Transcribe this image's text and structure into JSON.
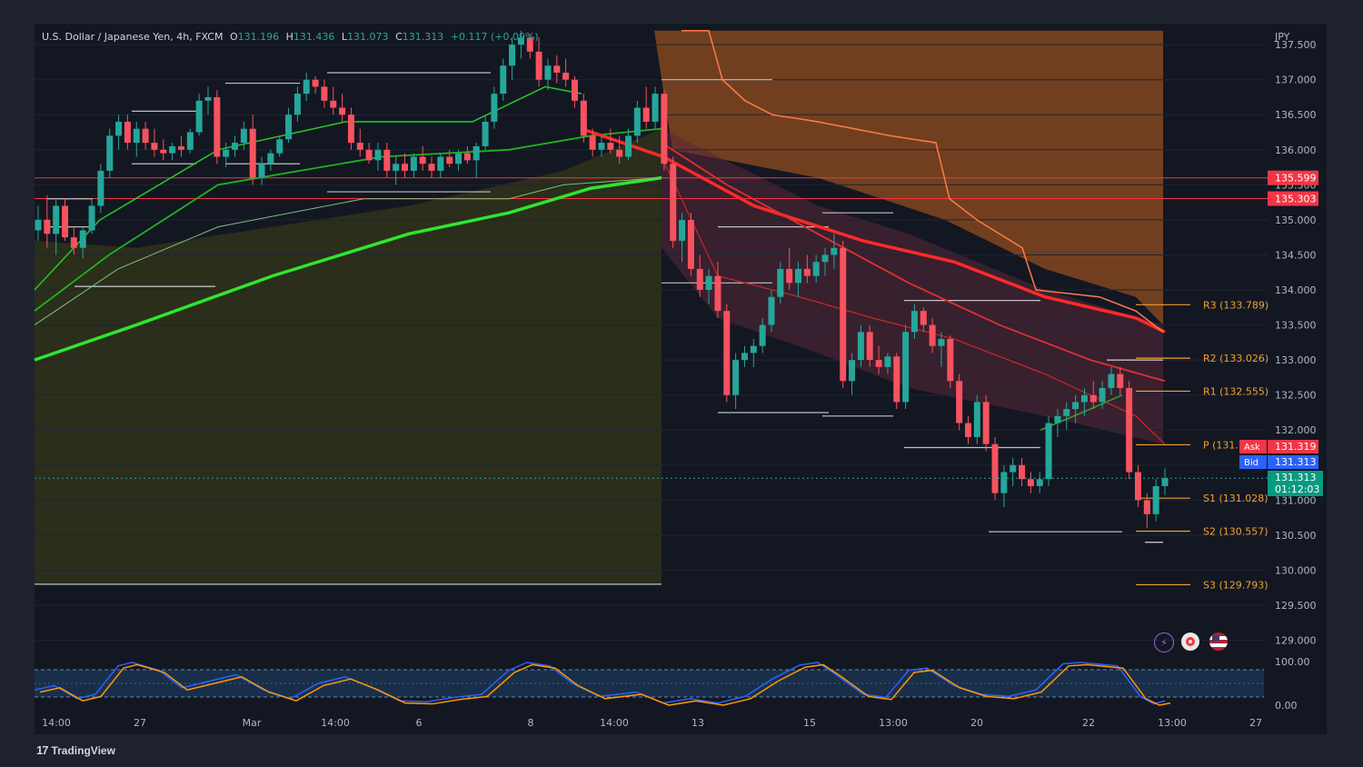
{
  "header": {
    "symbol": "U.S. Dollar / Japanese Yen",
    "interval": "4h",
    "source": "FXCM",
    "open_label": "O",
    "open": "131.196",
    "high_label": "H",
    "high": "131.436",
    "low_label": "L",
    "low": "131.073",
    "close_label": "C",
    "close": "131.313",
    "change": "+0.117 (+0.09%)"
  },
  "branding": {
    "logo_text": "TradingView",
    "logo_mark": "17"
  },
  "price_scale": {
    "currency": "JPY",
    "ticks": [
      "137.500",
      "137.000",
      "136.500",
      "136.000",
      "135.500",
      "135.000",
      "134.500",
      "134.000",
      "133.500",
      "133.000",
      "132.500",
      "132.000",
      "131.500",
      "131.000",
      "130.500",
      "130.000",
      "129.500",
      "129.000"
    ]
  },
  "price_labels": {
    "level_1": "135.599",
    "level_2": "135.303",
    "ask_label": "Ask",
    "ask": "131.319",
    "bid_label": "Bid",
    "bid": "131.313",
    "last": "131.313",
    "countdown": "01:12:03"
  },
  "pivots": [
    {
      "label": "R3 (133.789)",
      "value": 133.789
    },
    {
      "label": "R2 (133.026)",
      "value": 133.026
    },
    {
      "label": "R1 (132.555)",
      "value": 132.555
    },
    {
      "label": "P (131.",
      "value": 131.79
    },
    {
      "label": "S1 (131.028)",
      "value": 131.028
    },
    {
      "label": "S2 (130.557)",
      "value": 130.557
    },
    {
      "label": "S3 (129.793)",
      "value": 129.793
    }
  ],
  "oscillator": {
    "ticks": [
      "100.00",
      "0.00"
    ]
  },
  "time_axis": {
    "labels": [
      "14:00",
      "27",
      "Mar",
      "14:00",
      "6",
      "8",
      "14:00",
      "13",
      "15",
      "13:00",
      "20",
      "22",
      "13:00",
      "27"
    ]
  },
  "icons": [
    "lightning-icon",
    "record-icon",
    "us-flag-icon"
  ],
  "colors": {
    "up": "#26a69a",
    "down": "#f7525f",
    "ema_green": "#2ee62e",
    "ema_red": "#ff2a2a",
    "cloud_orange": "#8a4a1f",
    "cloud_olive": "#2f3219",
    "pivot": "#f0a030"
  },
  "chart_data": {
    "type": "candlestick",
    "symbol": "USDJPY",
    "interval": "4h",
    "y_range": [
      128.8,
      137.8
    ],
    "candles": [
      [
        134.85,
        135.2,
        134.7,
        135.0
      ],
      [
        135.0,
        135.35,
        134.6,
        134.8
      ],
      [
        134.8,
        135.3,
        134.5,
        135.2
      ],
      [
        135.2,
        135.3,
        134.7,
        134.75
      ],
      [
        134.75,
        134.9,
        134.5,
        134.6
      ],
      [
        134.6,
        134.9,
        134.45,
        134.85
      ],
      [
        134.85,
        135.3,
        134.8,
        135.2
      ],
      [
        135.2,
        135.8,
        135.1,
        135.7
      ],
      [
        135.7,
        136.3,
        135.6,
        136.2
      ],
      [
        136.2,
        136.5,
        136.0,
        136.4
      ],
      [
        136.4,
        136.5,
        136.0,
        136.1
      ],
      [
        136.1,
        136.4,
        135.9,
        136.3
      ],
      [
        136.3,
        136.4,
        136.0,
        136.1
      ],
      [
        136.1,
        136.3,
        135.9,
        136.0
      ],
      [
        136.0,
        136.15,
        135.85,
        135.95
      ],
      [
        135.95,
        136.1,
        135.85,
        136.05
      ],
      [
        136.05,
        136.2,
        135.9,
        136.0
      ],
      [
        136.0,
        136.3,
        135.95,
        136.25
      ],
      [
        136.25,
        136.8,
        136.2,
        136.7
      ],
      [
        136.7,
        136.9,
        136.5,
        136.75
      ],
      [
        136.75,
        136.85,
        135.8,
        135.9
      ],
      [
        135.9,
        136.1,
        135.75,
        136.0
      ],
      [
        136.0,
        136.2,
        135.9,
        136.1
      ],
      [
        136.1,
        136.4,
        136.0,
        136.3
      ],
      [
        136.3,
        136.5,
        135.5,
        135.6
      ],
      [
        135.6,
        135.9,
        135.5,
        135.8
      ],
      [
        135.8,
        136.0,
        135.7,
        135.95
      ],
      [
        135.95,
        136.2,
        135.9,
        136.15
      ],
      [
        136.15,
        136.6,
        136.1,
        136.5
      ],
      [
        136.5,
        136.9,
        136.4,
        136.8
      ],
      [
        136.8,
        137.1,
        136.7,
        137.0
      ],
      [
        137.0,
        137.05,
        136.8,
        136.9
      ],
      [
        136.9,
        137.0,
        136.6,
        136.7
      ],
      [
        136.7,
        136.9,
        136.5,
        136.6
      ],
      [
        136.6,
        136.8,
        136.4,
        136.5
      ],
      [
        136.5,
        136.6,
        136.0,
        136.1
      ],
      [
        136.1,
        136.3,
        135.9,
        136.0
      ],
      [
        136.0,
        136.1,
        135.8,
        135.85
      ],
      [
        135.85,
        136.1,
        135.7,
        136.0
      ],
      [
        136.0,
        136.1,
        135.6,
        135.7
      ],
      [
        135.7,
        135.9,
        135.5,
        135.8
      ],
      [
        135.8,
        135.95,
        135.6,
        135.7
      ],
      [
        135.7,
        135.95,
        135.6,
        135.9
      ],
      [
        135.9,
        136.05,
        135.7,
        135.8
      ],
      [
        135.8,
        135.9,
        135.6,
        135.7
      ],
      [
        135.7,
        135.95,
        135.6,
        135.9
      ],
      [
        135.9,
        136.0,
        135.75,
        135.8
      ],
      [
        135.8,
        136.0,
        135.7,
        135.95
      ],
      [
        135.95,
        136.05,
        135.8,
        135.85
      ],
      [
        135.85,
        136.1,
        135.6,
        136.05
      ],
      [
        136.05,
        136.5,
        136.0,
        136.4
      ],
      [
        136.4,
        136.9,
        136.3,
        136.8
      ],
      [
        136.8,
        137.3,
        136.7,
        137.2
      ],
      [
        137.2,
        137.6,
        137.0,
        137.5
      ],
      [
        137.5,
        137.7,
        137.3,
        137.6
      ],
      [
        137.6,
        137.65,
        137.3,
        137.4
      ],
      [
        137.4,
        137.6,
        136.9,
        137.0
      ],
      [
        137.0,
        137.3,
        136.85,
        137.2
      ],
      [
        137.2,
        137.35,
        136.95,
        137.1
      ],
      [
        137.1,
        137.3,
        136.9,
        137.0
      ],
      [
        137.0,
        137.05,
        136.6,
        136.7
      ],
      [
        136.7,
        136.8,
        136.1,
        136.2
      ],
      [
        136.2,
        136.3,
        135.9,
        136.0
      ],
      [
        136.0,
        136.2,
        135.9,
        136.1
      ],
      [
        136.1,
        136.3,
        135.95,
        136.0
      ],
      [
        136.0,
        136.2,
        135.8,
        135.9
      ],
      [
        135.9,
        136.3,
        135.85,
        136.2
      ],
      [
        136.2,
        136.7,
        136.1,
        136.6
      ],
      [
        136.6,
        136.9,
        136.3,
        136.4
      ],
      [
        136.4,
        136.9,
        136.3,
        136.8
      ],
      [
        136.8,
        136.85,
        135.7,
        135.8
      ],
      [
        135.8,
        135.9,
        134.6,
        134.7
      ],
      [
        134.7,
        135.1,
        134.4,
        135.0
      ],
      [
        135.0,
        135.1,
        134.2,
        134.3
      ],
      [
        134.3,
        134.5,
        133.9,
        134.0
      ],
      [
        134.0,
        134.3,
        133.8,
        134.2
      ],
      [
        134.2,
        134.4,
        133.6,
        133.7
      ],
      [
        133.7,
        133.8,
        132.4,
        132.5
      ],
      [
        132.5,
        133.1,
        132.3,
        133.0
      ],
      [
        133.0,
        133.2,
        132.9,
        133.1
      ],
      [
        133.1,
        133.3,
        132.9,
        133.2
      ],
      [
        133.2,
        133.6,
        133.1,
        133.5
      ],
      [
        133.5,
        134.0,
        133.4,
        133.9
      ],
      [
        133.9,
        134.4,
        133.8,
        134.3
      ],
      [
        134.3,
        134.6,
        134.0,
        134.1
      ],
      [
        134.1,
        134.4,
        133.9,
        134.3
      ],
      [
        134.3,
        134.5,
        134.1,
        134.2
      ],
      [
        134.2,
        134.5,
        134.1,
        134.4
      ],
      [
        134.4,
        134.6,
        134.2,
        134.5
      ],
      [
        134.5,
        134.8,
        134.3,
        134.6
      ],
      [
        134.6,
        134.7,
        132.6,
        132.7
      ],
      [
        132.7,
        133.1,
        132.5,
        133.0
      ],
      [
        133.0,
        133.5,
        132.9,
        133.4
      ],
      [
        133.4,
        133.5,
        132.9,
        133.0
      ],
      [
        133.0,
        133.2,
        132.8,
        132.9
      ],
      [
        132.9,
        133.1,
        132.8,
        133.05
      ],
      [
        133.05,
        133.1,
        132.3,
        132.4
      ],
      [
        132.4,
        133.5,
        132.3,
        133.4
      ],
      [
        133.4,
        133.8,
        133.3,
        133.7
      ],
      [
        133.7,
        133.75,
        133.4,
        133.5
      ],
      [
        133.5,
        133.6,
        133.1,
        133.2
      ],
      [
        133.2,
        133.4,
        132.9,
        133.3
      ],
      [
        133.3,
        133.35,
        132.6,
        132.7
      ],
      [
        132.7,
        132.8,
        132.0,
        132.1
      ],
      [
        132.1,
        132.2,
        131.8,
        131.9
      ],
      [
        131.9,
        132.5,
        131.8,
        132.4
      ],
      [
        132.4,
        132.5,
        131.7,
        131.8
      ],
      [
        131.8,
        131.9,
        131.0,
        131.1
      ],
      [
        131.1,
        131.5,
        130.9,
        131.4
      ],
      [
        131.4,
        131.6,
        131.2,
        131.5
      ],
      [
        131.5,
        131.6,
        131.2,
        131.3
      ],
      [
        131.3,
        131.4,
        131.1,
        131.2
      ],
      [
        131.2,
        131.4,
        131.1,
        131.3
      ],
      [
        131.3,
        132.2,
        131.2,
        132.1
      ],
      [
        132.1,
        132.3,
        131.9,
        132.2
      ],
      [
        132.2,
        132.4,
        132.0,
        132.3
      ],
      [
        132.3,
        132.5,
        132.1,
        132.4
      ],
      [
        132.4,
        132.6,
        132.2,
        132.5
      ],
      [
        132.5,
        132.7,
        132.3,
        132.4
      ],
      [
        132.4,
        132.7,
        132.3,
        132.6
      ],
      [
        132.6,
        132.9,
        132.5,
        132.8
      ],
      [
        132.8,
        132.9,
        132.5,
        132.6
      ],
      [
        132.6,
        132.7,
        131.3,
        131.4
      ],
      [
        131.4,
        131.5,
        130.9,
        131.0
      ],
      [
        131.0,
        131.1,
        130.6,
        130.8
      ],
      [
        130.8,
        131.3,
        130.7,
        131.2
      ],
      [
        131.2,
        131.45,
        131.07,
        131.313
      ]
    ],
    "current_price": 131.313,
    "oscillator_range": [
      0,
      100
    ]
  }
}
